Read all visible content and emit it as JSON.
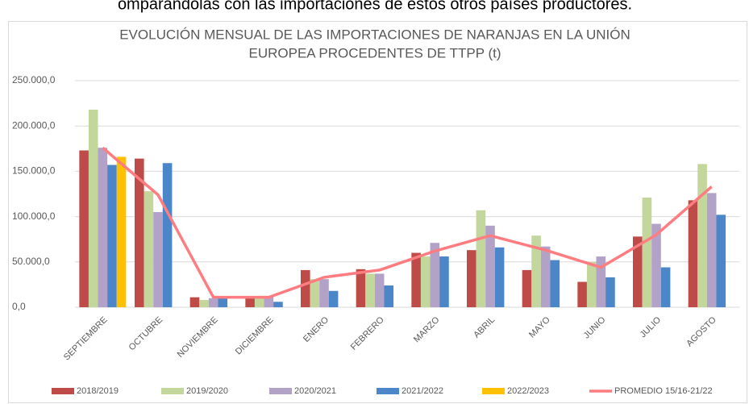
{
  "caption": "omparándolas con las importaciones de estos otros países productores.",
  "chart_data": {
    "type": "bar",
    "title": [
      "EVOLUCIÓN MENSUAL DE LAS IMPORTACIONES DE NARANJAS EN LA UNIÓN",
      "EUROPEA PROCEDENTES DE TTPP (t)"
    ],
    "categories": [
      "SEPTIEMBRE",
      "OCTUBRE",
      "NOVIEMBRE",
      "DICIEMBRE",
      "ENERO",
      "FEBRERO",
      "MARZO",
      "ABRIL",
      "MAYO",
      "JUNIO",
      "JULIO",
      "AGOSTO"
    ],
    "series": [
      {
        "name": "2018/2019",
        "color": "#be4b48",
        "values": [
          173000,
          164000,
          11000,
          10000,
          41000,
          42000,
          60000,
          63000,
          41000,
          28000,
          78000,
          118000
        ]
      },
      {
        "name": "2019/2020",
        "color": "#c3d69b",
        "values": [
          218000,
          128000,
          8000,
          11000,
          31000,
          37000,
          56000,
          107000,
          79000,
          50000,
          121000,
          158000
        ]
      },
      {
        "name": "2020/2021",
        "color": "#b3a2c7",
        "values": [
          176000,
          105000,
          10000,
          12000,
          31000,
          37000,
          71000,
          90000,
          67000,
          56000,
          92000,
          126000
        ]
      },
      {
        "name": "2021/2022",
        "color": "#4a86c8",
        "values": [
          157000,
          159000,
          10000,
          6000,
          18000,
          24000,
          56000,
          66000,
          52000,
          33000,
          44000,
          102000
        ]
      },
      {
        "name": "2022/2023",
        "color": "#ffc000",
        "values": [
          166000,
          null,
          null,
          null,
          null,
          null,
          null,
          null,
          null,
          null,
          null,
          null
        ]
      },
      {
        "name": "PROMEDIO 15/16-21/22",
        "color": "#ff7c80",
        "type": "line",
        "values": [
          176000,
          124000,
          11000,
          11000,
          33000,
          41000,
          62000,
          79000,
          63000,
          44000,
          80000,
          133000
        ]
      }
    ],
    "ylim": [
      0,
      250000
    ],
    "yticks": [
      {
        "value": 0,
        "label": "0,0"
      },
      {
        "value": 50000,
        "label": "50.000,0"
      },
      {
        "value": 100000,
        "label": "100.000,0"
      },
      {
        "value": 150000,
        "label": "150.000,0"
      },
      {
        "value": 200000,
        "label": "200.000,0"
      },
      {
        "value": 250000,
        "label": "250.000,0"
      }
    ],
    "grid": true,
    "legend": "bottom"
  }
}
